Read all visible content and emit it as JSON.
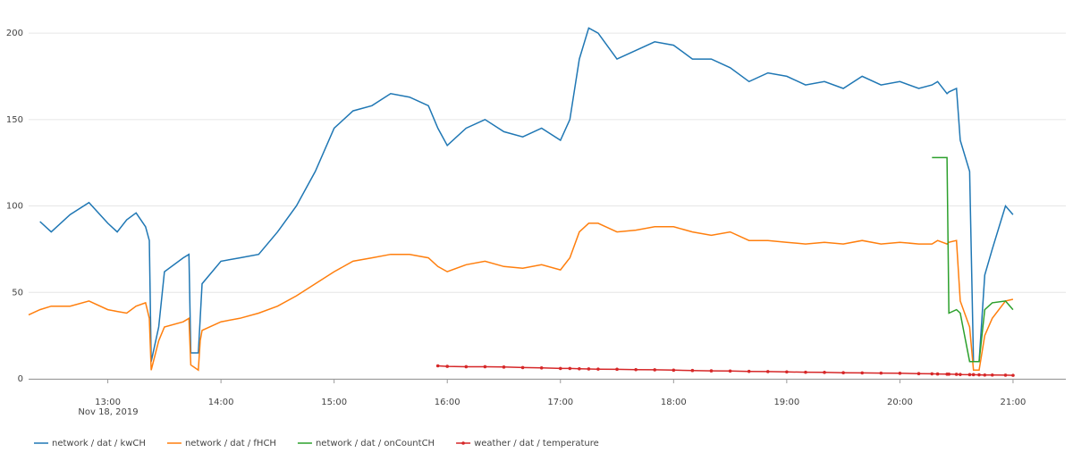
{
  "chart_data": {
    "type": "line",
    "x": [
      "2019-11-18T12:18",
      "2019-11-18T12:24",
      "2019-11-18T12:30",
      "2019-11-18T12:40",
      "2019-11-18T12:50",
      "2019-11-18T13:00",
      "2019-11-18T13:05",
      "2019-11-18T13:10",
      "2019-11-18T13:15",
      "2019-11-18T13:20",
      "2019-11-18T13:22",
      "2019-11-18T13:23",
      "2019-11-18T13:27",
      "2019-11-18T13:30",
      "2019-11-18T13:40",
      "2019-11-18T13:43",
      "2019-11-18T13:44",
      "2019-11-18T13:48",
      "2019-11-18T13:49",
      "2019-11-18T13:50",
      "2019-11-18T14:00",
      "2019-11-18T14:10",
      "2019-11-18T14:20",
      "2019-11-18T14:30",
      "2019-11-18T14:40",
      "2019-11-18T14:50",
      "2019-11-18T15:00",
      "2019-11-18T15:10",
      "2019-11-18T15:20",
      "2019-11-18T15:30",
      "2019-11-18T15:40",
      "2019-11-18T15:50",
      "2019-11-18T15:55",
      "2019-11-18T16:00",
      "2019-11-18T16:10",
      "2019-11-18T16:20",
      "2019-11-18T16:30",
      "2019-11-18T16:40",
      "2019-11-18T16:50",
      "2019-11-18T17:00",
      "2019-11-18T17:05",
      "2019-11-18T17:10",
      "2019-11-18T17:15",
      "2019-11-18T17:20",
      "2019-11-18T17:30",
      "2019-11-18T17:40",
      "2019-11-18T17:50",
      "2019-11-18T18:00",
      "2019-11-18T18:10",
      "2019-11-18T18:20",
      "2019-11-18T18:30",
      "2019-11-18T18:40",
      "2019-11-18T18:50",
      "2019-11-18T19:00",
      "2019-11-18T19:10",
      "2019-11-18T19:20",
      "2019-11-18T19:30",
      "2019-11-18T19:40",
      "2019-11-18T19:50",
      "2019-11-18T20:00",
      "2019-11-18T20:10",
      "2019-11-18T20:17",
      "2019-11-18T20:20",
      "2019-11-18T20:25",
      "2019-11-18T20:26",
      "2019-11-18T20:30",
      "2019-11-18T20:32",
      "2019-11-18T20:37",
      "2019-11-18T20:39",
      "2019-11-18T20:42",
      "2019-11-18T20:45",
      "2019-11-18T20:49",
      "2019-11-18T20:56",
      "2019-11-18T21:00"
    ],
    "series": [
      {
        "name": "network / dat / kwCH",
        "color": "#1f77b4",
        "values": [
          null,
          91,
          85,
          95,
          102,
          90,
          85,
          92,
          96,
          88,
          80,
          10,
          30,
          62,
          70,
          72,
          15,
          15,
          35,
          55,
          68,
          70,
          72,
          85,
          100,
          120,
          145,
          155,
          158,
          165,
          163,
          158,
          145,
          135,
          145,
          150,
          143,
          140,
          145,
          138,
          150,
          185,
          203,
          200,
          185,
          190,
          195,
          193,
          185,
          185,
          180,
          172,
          177,
          175,
          170,
          172,
          168,
          175,
          170,
          172,
          168,
          170,
          172,
          165,
          166,
          168,
          138,
          120,
          10,
          10,
          60,
          75,
          100,
          95
        ]
      },
      {
        "name": "network / dat / fHCH",
        "color": "#ff7f0e",
        "values": [
          37,
          40,
          42,
          42,
          45,
          40,
          39,
          38,
          42,
          44,
          35,
          5,
          22,
          30,
          33,
          35,
          8,
          5,
          22,
          28,
          33,
          35,
          38,
          42,
          48,
          55,
          62,
          68,
          70,
          72,
          72,
          70,
          65,
          62,
          66,
          68,
          65,
          64,
          66,
          63,
          70,
          85,
          90,
          90,
          85,
          86,
          88,
          88,
          85,
          83,
          85,
          80,
          80,
          79,
          78,
          79,
          78,
          80,
          78,
          79,
          78,
          78,
          80,
          78,
          79,
          80,
          45,
          30,
          5,
          5,
          25,
          35,
          45,
          46
        ]
      },
      {
        "name": "network / dat / onCountCH",
        "color": "#2ca02c",
        "values": [
          null,
          null,
          null,
          null,
          null,
          null,
          null,
          null,
          null,
          null,
          null,
          null,
          null,
          null,
          null,
          null,
          null,
          null,
          null,
          null,
          null,
          null,
          null,
          null,
          null,
          null,
          null,
          null,
          null,
          null,
          null,
          null,
          null,
          null,
          null,
          null,
          null,
          null,
          null,
          null,
          null,
          null,
          null,
          null,
          null,
          null,
          null,
          null,
          null,
          null,
          null,
          null,
          null,
          null,
          null,
          null,
          null,
          null,
          null,
          null,
          null,
          128,
          128,
          128,
          38,
          40,
          38,
          10,
          10,
          10,
          40,
          44,
          45,
          40
        ]
      },
      {
        "name": "weather / dat / temperature",
        "color": "#d62728",
        "markers": true,
        "values": [
          null,
          null,
          null,
          null,
          null,
          null,
          null,
          null,
          null,
          null,
          null,
          null,
          null,
          null,
          null,
          null,
          null,
          null,
          null,
          null,
          null,
          null,
          null,
          null,
          null,
          null,
          null,
          null,
          null,
          null,
          null,
          null,
          7.5,
          7.2,
          7,
          7,
          6.8,
          6.5,
          6.3,
          6,
          6,
          5.8,
          5.7,
          5.6,
          5.5,
          5.3,
          5.2,
          5,
          4.8,
          4.6,
          4.5,
          4.3,
          4.2,
          4,
          3.8,
          3.7,
          3.5,
          3.4,
          3.3,
          3.2,
          3,
          2.9,
          2.8,
          2.7,
          2.7,
          2.6,
          2.5,
          2.4,
          2.4,
          2.3,
          2.2,
          2.2,
          2.1,
          2
        ]
      }
    ],
    "xlim": [
      "2019-11-18T12:18",
      "2019-11-18T21:28"
    ],
    "xticks": [
      {
        "value": "2019-11-18T13:00",
        "label": "13:00"
      },
      {
        "value": "2019-11-18T14:00",
        "label": "14:00"
      },
      {
        "value": "2019-11-18T15:00",
        "label": "15:00"
      },
      {
        "value": "2019-11-18T16:00",
        "label": "16:00"
      },
      {
        "value": "2019-11-18T17:00",
        "label": "17:00"
      },
      {
        "value": "2019-11-18T18:00",
        "label": "18:00"
      },
      {
        "value": "2019-11-18T19:00",
        "label": "19:00"
      },
      {
        "value": "2019-11-18T20:00",
        "label": "20:00"
      },
      {
        "value": "2019-11-18T21:00",
        "label": "21:00"
      }
    ],
    "x_date_label": "Nov 18, 2019",
    "ylim": [
      0,
      214
    ],
    "yticks": [
      0,
      50,
      100,
      150,
      200
    ],
    "grid": true,
    "legend": "bottom"
  }
}
